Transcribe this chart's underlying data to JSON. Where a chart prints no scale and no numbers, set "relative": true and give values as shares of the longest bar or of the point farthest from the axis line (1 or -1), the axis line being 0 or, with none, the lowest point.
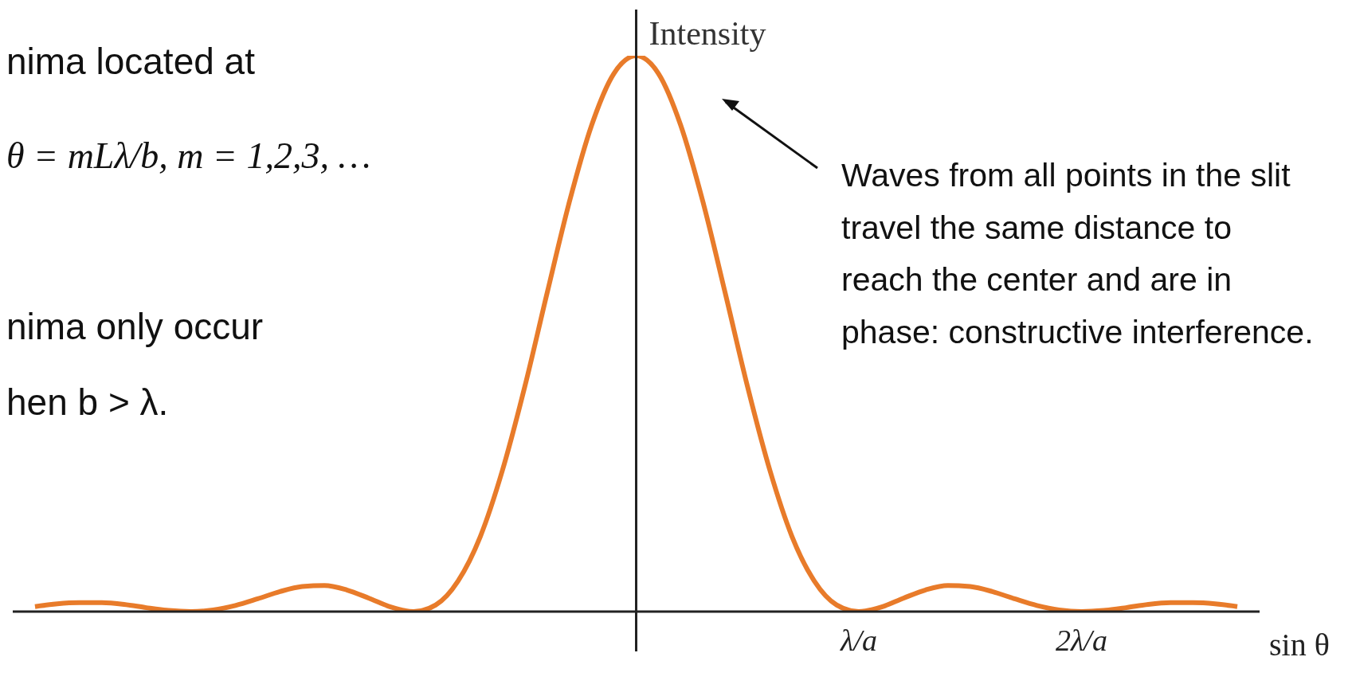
{
  "chart_data": {
    "type": "line",
    "relative": true,
    "xlabel": "sin θ",
    "ylabel": "Intensity",
    "color": "#e87b2a",
    "categories": [
      null,
      null,
      null,
      null,
      null,
      null,
      null,
      null,
      null,
      null,
      null,
      null,
      null,
      null,
      null,
      null,
      null,
      null,
      null,
      null,
      null,
      null,
      null,
      null,
      null,
      null,
      null,
      null,
      null,
      null,
      null,
      null,
      null,
      null,
      null,
      null,
      null,
      null,
      "λ/a",
      null,
      null,
      null,
      null,
      null,
      null,
      null,
      null,
      null,
      "2λ/a",
      null,
      null,
      null,
      null,
      null,
      null,
      null,
      null
    ],
    "values": [
      null,
      0.009,
      0.014,
      0.016,
      0.016,
      0.013,
      0.007,
      0.002,
      0,
      0.003,
      0.011,
      0.023,
      0.036,
      0.045,
      0.047,
      0.039,
      0.024,
      0.008,
      0,
      0.012,
      0.055,
      0.135,
      0.255,
      0.405,
      0.573,
      0.737,
      0.875,
      0.968,
      1,
      0.968,
      0.875,
      0.737,
      0.573,
      0.405,
      0.255,
      0.135,
      0.055,
      0.012,
      0,
      0.008,
      0.024,
      0.039,
      0.047,
      0.045,
      0.036,
      0.023,
      0.011,
      0.003,
      0,
      0.002,
      0.007,
      0.013,
      0.016,
      0.016,
      0.014,
      0.009,
      null
    ],
    "annotations": [
      "nima located at",
      "θ = mLλ/b, m = 1,2,3, …",
      "nima only occur",
      "hen b > λ.",
      "Waves from all points in the slit travel the same distance to reach the center and are in phase: constructive interference."
    ]
  }
}
